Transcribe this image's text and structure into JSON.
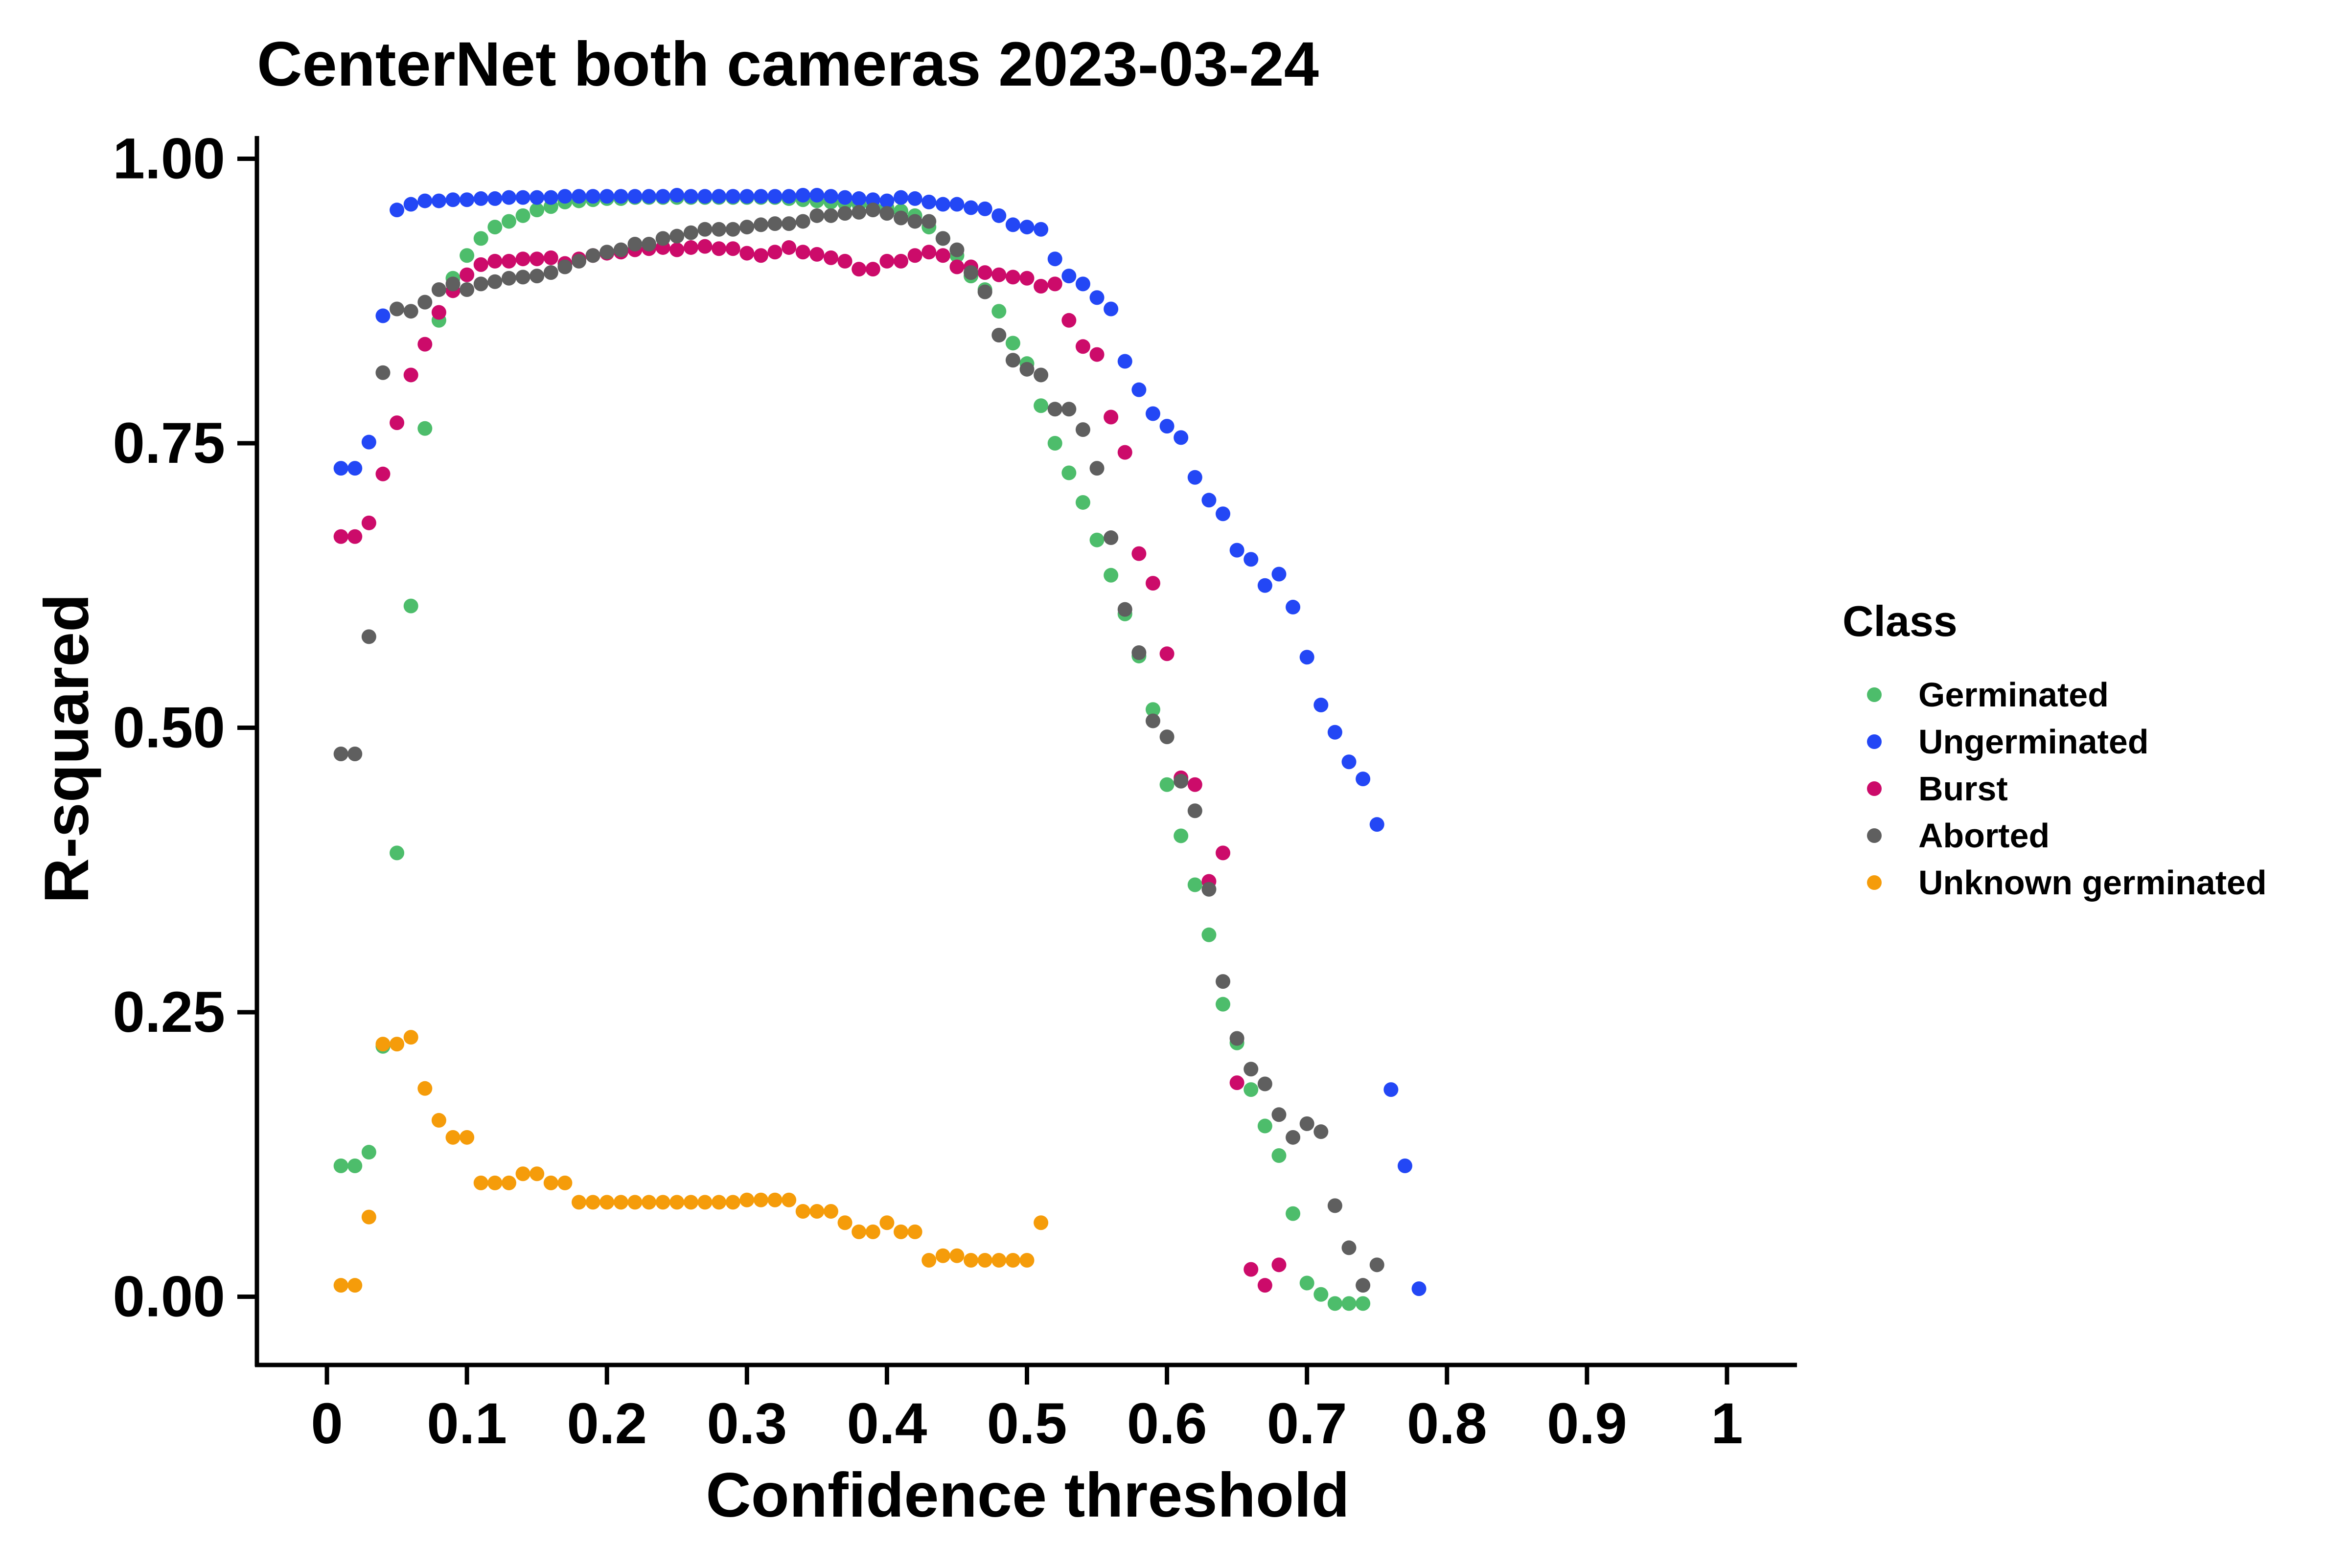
{
  "chart_data": {
    "type": "scatter",
    "title": "CenterNet both cameras 2023-03-24",
    "xlabel": "Confidence threshold",
    "ylabel": "R-squared",
    "xlim": [
      -0.05,
      1.05
    ],
    "ylim": [
      -0.06,
      1.02
    ],
    "x_ticks": [
      0,
      0.1,
      0.2,
      0.3,
      0.4,
      0.5,
      0.6,
      0.7,
      0.8,
      0.9,
      1
    ],
    "x_tick_labels": [
      "0",
      "0.1",
      "0.2",
      "0.3",
      "0.4",
      "0.5",
      "0.6",
      "0.7",
      "0.8",
      "0.9",
      "1"
    ],
    "y_ticks": [
      0,
      0.25,
      0.5,
      0.75,
      1
    ],
    "y_tick_labels": [
      "0.00",
      "0.25",
      "0.50",
      "0.75",
      "1.00"
    ],
    "grid": false,
    "legend": {
      "title": "Class",
      "placement": "right"
    },
    "series": [
      {
        "name": "Germinated",
        "color": "#4DBD6B",
        "x": [
          0.01,
          0.02,
          0.03,
          0.04,
          0.05,
          0.06,
          0.07,
          0.08,
          0.09,
          0.1,
          0.11,
          0.12,
          0.13,
          0.14,
          0.15,
          0.16,
          0.17,
          0.18,
          0.19,
          0.2,
          0.21,
          0.22,
          0.23,
          0.24,
          0.25,
          0.26,
          0.27,
          0.28,
          0.29,
          0.3,
          0.31,
          0.32,
          0.33,
          0.34,
          0.35,
          0.36,
          0.37,
          0.38,
          0.39,
          0.4,
          0.41,
          0.42,
          0.43,
          0.44,
          0.45,
          0.46,
          0.47,
          0.48,
          0.49,
          0.5,
          0.51,
          0.52,
          0.53,
          0.54,
          0.55,
          0.56,
          0.57,
          0.58,
          0.59,
          0.6,
          0.61,
          0.62,
          0.63,
          0.64,
          0.65,
          0.66,
          0.67,
          0.68,
          0.69,
          0.7,
          0.71,
          0.72,
          0.73,
          0.74
        ],
        "y": [
          0.115,
          0.115,
          0.127,
          0.22,
          0.39,
          0.607,
          0.763,
          0.858,
          0.895,
          0.915,
          0.93,
          0.94,
          0.945,
          0.95,
          0.955,
          0.958,
          0.962,
          0.963,
          0.964,
          0.965,
          0.965,
          0.966,
          0.966,
          0.966,
          0.966,
          0.966,
          0.966,
          0.966,
          0.966,
          0.966,
          0.966,
          0.966,
          0.965,
          0.964,
          0.963,
          0.962,
          0.961,
          0.96,
          0.958,
          0.957,
          0.954,
          0.95,
          0.94,
          0.93,
          0.915,
          0.897,
          0.885,
          0.866,
          0.838,
          0.82,
          0.783,
          0.75,
          0.724,
          0.698,
          0.665,
          0.634,
          0.6,
          0.563,
          0.516,
          0.45,
          0.405,
          0.362,
          0.318,
          0.257,
          0.223,
          0.182,
          0.15,
          0.124,
          0.073,
          0.012,
          0.002,
          -0.006,
          -0.006,
          -0.006
        ]
      },
      {
        "name": "Ungerminated",
        "color": "#2347F5",
        "x": [
          0.01,
          0.02,
          0.03,
          0.04,
          0.05,
          0.06,
          0.07,
          0.08,
          0.09,
          0.1,
          0.11,
          0.12,
          0.13,
          0.14,
          0.15,
          0.16,
          0.17,
          0.18,
          0.19,
          0.2,
          0.21,
          0.22,
          0.23,
          0.24,
          0.25,
          0.26,
          0.27,
          0.28,
          0.29,
          0.3,
          0.31,
          0.32,
          0.33,
          0.34,
          0.35,
          0.36,
          0.37,
          0.38,
          0.39,
          0.4,
          0.41,
          0.42,
          0.43,
          0.44,
          0.45,
          0.46,
          0.47,
          0.48,
          0.49,
          0.5,
          0.51,
          0.52,
          0.53,
          0.54,
          0.55,
          0.56,
          0.57,
          0.58,
          0.59,
          0.6,
          0.61,
          0.62,
          0.63,
          0.64,
          0.65,
          0.66,
          0.67,
          0.68,
          0.69,
          0.7,
          0.71,
          0.72,
          0.73,
          0.74,
          0.75,
          0.76,
          0.77,
          0.78
        ],
        "y": [
          0.728,
          0.728,
          0.751,
          0.862,
          0.955,
          0.96,
          0.963,
          0.963,
          0.964,
          0.964,
          0.965,
          0.965,
          0.966,
          0.966,
          0.966,
          0.966,
          0.967,
          0.967,
          0.967,
          0.967,
          0.967,
          0.967,
          0.967,
          0.967,
          0.968,
          0.967,
          0.967,
          0.967,
          0.967,
          0.967,
          0.967,
          0.967,
          0.967,
          0.968,
          0.968,
          0.967,
          0.966,
          0.965,
          0.964,
          0.963,
          0.966,
          0.965,
          0.962,
          0.96,
          0.96,
          0.957,
          0.956,
          0.95,
          0.942,
          0.94,
          0.938,
          0.912,
          0.897,
          0.89,
          0.878,
          0.868,
          0.822,
          0.797,
          0.776,
          0.765,
          0.755,
          0.72,
          0.7,
          0.688,
          0.656,
          0.648,
          0.625,
          0.635,
          0.606,
          0.562,
          0.52,
          0.496,
          0.47,
          0.455,
          0.415,
          0.182,
          0.115,
          0.007
        ]
      },
      {
        "name": "Burst",
        "color": "#CC0B6A",
        "x": [
          0.01,
          0.02,
          0.03,
          0.04,
          0.05,
          0.06,
          0.07,
          0.08,
          0.09,
          0.1,
          0.11,
          0.12,
          0.13,
          0.14,
          0.15,
          0.16,
          0.17,
          0.18,
          0.19,
          0.2,
          0.21,
          0.22,
          0.23,
          0.24,
          0.25,
          0.26,
          0.27,
          0.28,
          0.29,
          0.3,
          0.31,
          0.32,
          0.33,
          0.34,
          0.35,
          0.36,
          0.37,
          0.38,
          0.39,
          0.4,
          0.41,
          0.42,
          0.43,
          0.44,
          0.45,
          0.46,
          0.47,
          0.48,
          0.49,
          0.5,
          0.51,
          0.52,
          0.53,
          0.54,
          0.55,
          0.56,
          0.57,
          0.58,
          0.59,
          0.6,
          0.61,
          0.62,
          0.63,
          0.64,
          0.65,
          0.66,
          0.67,
          0.68
        ],
        "y": [
          0.668,
          0.668,
          0.68,
          0.723,
          0.768,
          0.81,
          0.837,
          0.865,
          0.884,
          0.898,
          0.907,
          0.91,
          0.91,
          0.912,
          0.912,
          0.913,
          0.908,
          0.912,
          0.915,
          0.917,
          0.918,
          0.92,
          0.921,
          0.922,
          0.92,
          0.922,
          0.923,
          0.921,
          0.921,
          0.917,
          0.915,
          0.918,
          0.922,
          0.918,
          0.916,
          0.913,
          0.91,
          0.903,
          0.903,
          0.91,
          0.91,
          0.915,
          0.918,
          0.915,
          0.905,
          0.905,
          0.9,
          0.898,
          0.896,
          0.895,
          0.888,
          0.89,
          0.858,
          0.835,
          0.828,
          0.773,
          0.742,
          0.653,
          0.627,
          0.565,
          0.456,
          0.45,
          0.365,
          0.39,
          0.188,
          0.024,
          0.01,
          0.028
        ]
      },
      {
        "name": "Aborted",
        "color": "#5F5F5F",
        "x": [
          0.01,
          0.02,
          0.03,
          0.04,
          0.05,
          0.06,
          0.07,
          0.08,
          0.09,
          0.1,
          0.11,
          0.12,
          0.13,
          0.14,
          0.15,
          0.16,
          0.17,
          0.18,
          0.19,
          0.2,
          0.21,
          0.22,
          0.23,
          0.24,
          0.25,
          0.26,
          0.27,
          0.28,
          0.29,
          0.3,
          0.31,
          0.32,
          0.33,
          0.34,
          0.35,
          0.36,
          0.37,
          0.38,
          0.39,
          0.4,
          0.41,
          0.42,
          0.43,
          0.44,
          0.45,
          0.46,
          0.47,
          0.48,
          0.49,
          0.5,
          0.51,
          0.52,
          0.53,
          0.54,
          0.55,
          0.56,
          0.57,
          0.58,
          0.59,
          0.6,
          0.61,
          0.62,
          0.63,
          0.64,
          0.65,
          0.66,
          0.67,
          0.68,
          0.69,
          0.7,
          0.71,
          0.72,
          0.73,
          0.74,
          0.75
        ],
        "y": [
          0.477,
          0.477,
          0.58,
          0.812,
          0.868,
          0.866,
          0.874,
          0.885,
          0.89,
          0.885,
          0.89,
          0.892,
          0.895,
          0.896,
          0.897,
          0.9,
          0.905,
          0.91,
          0.915,
          0.918,
          0.92,
          0.925,
          0.925,
          0.93,
          0.932,
          0.935,
          0.938,
          0.938,
          0.938,
          0.94,
          0.942,
          0.943,
          0.943,
          0.945,
          0.95,
          0.95,
          0.952,
          0.953,
          0.955,
          0.952,
          0.948,
          0.945,
          0.945,
          0.93,
          0.92,
          0.9,
          0.883,
          0.845,
          0.823,
          0.815,
          0.81,
          0.78,
          0.78,
          0.762,
          0.728,
          0.667,
          0.604,
          0.566,
          0.506,
          0.492,
          0.453,
          0.427,
          0.358,
          0.277,
          0.227,
          0.2,
          0.187,
          0.16,
          0.14,
          0.152,
          0.145,
          0.08,
          0.043,
          0.01,
          0.028
        ]
      },
      {
        "name": "Unknown germinated",
        "color": "#F59C0A",
        "x": [
          0.01,
          0.02,
          0.03,
          0.04,
          0.05,
          0.06,
          0.07,
          0.08,
          0.09,
          0.1,
          0.11,
          0.12,
          0.13,
          0.14,
          0.15,
          0.16,
          0.17,
          0.18,
          0.19,
          0.2,
          0.21,
          0.22,
          0.23,
          0.24,
          0.25,
          0.26,
          0.27,
          0.28,
          0.29,
          0.3,
          0.31,
          0.32,
          0.33,
          0.34,
          0.35,
          0.36,
          0.37,
          0.38,
          0.39,
          0.4,
          0.41,
          0.42,
          0.43,
          0.44,
          0.45,
          0.46,
          0.47,
          0.48,
          0.49,
          0.5,
          0.51
        ],
        "y": [
          0.01,
          0.01,
          0.07,
          0.222,
          0.222,
          0.228,
          0.183,
          0.155,
          0.14,
          0.14,
          0.1,
          0.1,
          0.1,
          0.108,
          0.108,
          0.1,
          0.1,
          0.083,
          0.083,
          0.083,
          0.083,
          0.083,
          0.083,
          0.083,
          0.083,
          0.083,
          0.083,
          0.083,
          0.083,
          0.085,
          0.085,
          0.085,
          0.085,
          0.075,
          0.075,
          0.075,
          0.065,
          0.057,
          0.057,
          0.065,
          0.057,
          0.057,
          0.032,
          0.036,
          0.036,
          0.032,
          0.032,
          0.032,
          0.032,
          0.032,
          0.065
        ]
      }
    ]
  }
}
